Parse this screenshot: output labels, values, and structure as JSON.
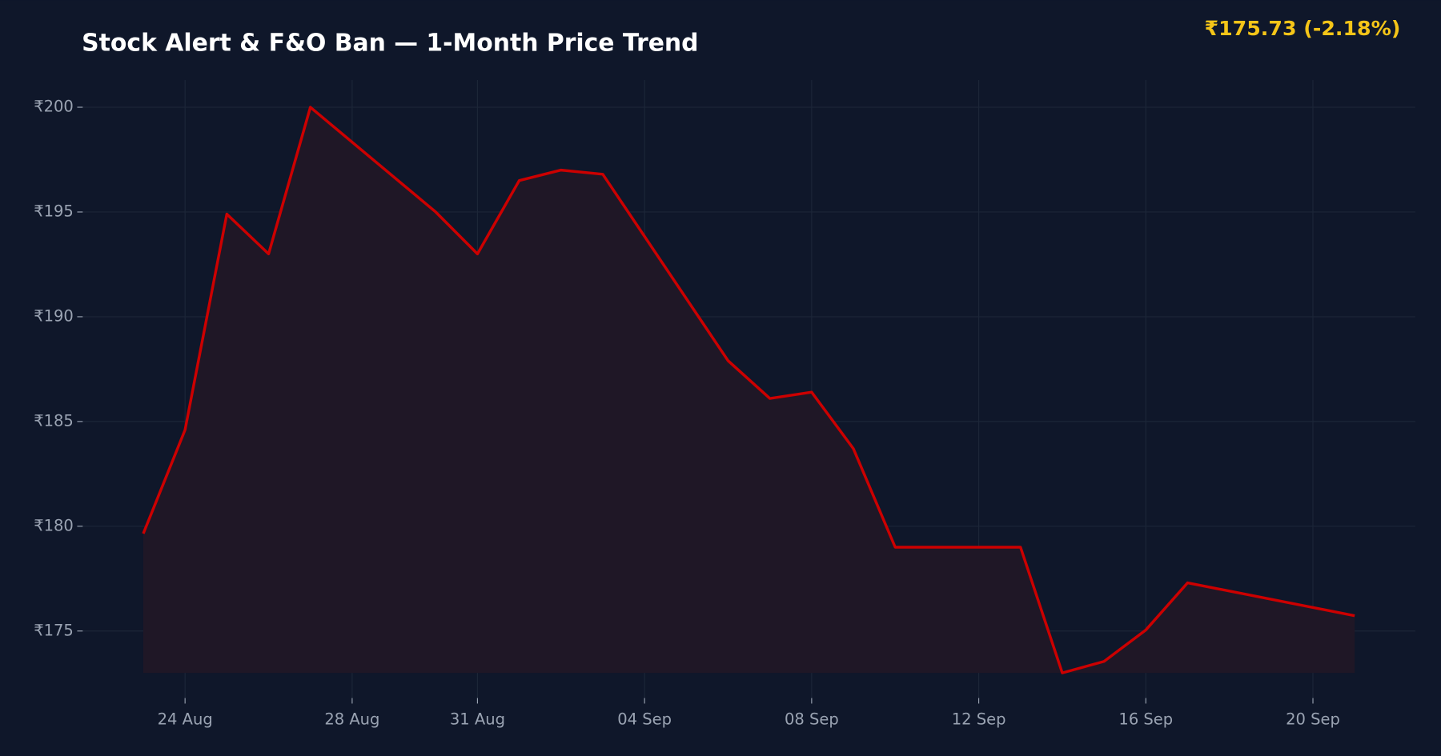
{
  "chart_data": {
    "type": "line",
    "title": "Stock Alert & F&O Ban — 1-Month Price Trend",
    "annotation": "₹175.73  (-2.18%)",
    "x": [
      "23 Aug",
      "24 Aug",
      "25 Aug",
      "26 Aug",
      "27 Aug",
      "30 Aug",
      "31 Aug",
      "01 Sep",
      "02 Sep",
      "03 Sep",
      "06 Sep",
      "07 Sep",
      "08 Sep",
      "09 Sep",
      "10 Sep",
      "13 Sep",
      "14 Sep",
      "15 Sep",
      "16 Sep",
      "17 Sep",
      "21 Sep"
    ],
    "series": [
      {
        "name": "Price",
        "color": "#cc0000",
        "fill": "#1f1726",
        "values": [
          179.65,
          184.6,
          194.9,
          193.0,
          200.0,
          195.0,
          193.0,
          196.5,
          197.0,
          196.8,
          187.9,
          186.1,
          186.4,
          183.7,
          179.0,
          179.0,
          173.0,
          173.55,
          175.05,
          177.3,
          175.73
        ]
      }
    ],
    "xticks": [
      "24 Aug",
      "28 Aug",
      "31 Aug",
      "04 Sep",
      "08 Sep",
      "12 Sep",
      "16 Sep",
      "20 Sep"
    ],
    "ylim": [
      171.8,
      201.3
    ],
    "yticks": [
      {
        "value": 175,
        "label": "₹175"
      },
      {
        "value": 180,
        "label": "₹180"
      },
      {
        "value": 185,
        "label": "₹185"
      },
      {
        "value": 190,
        "label": "₹190"
      },
      {
        "value": 195,
        "label": "₹195"
      },
      {
        "value": 200,
        "label": "₹200"
      }
    ],
    "grid": true
  }
}
